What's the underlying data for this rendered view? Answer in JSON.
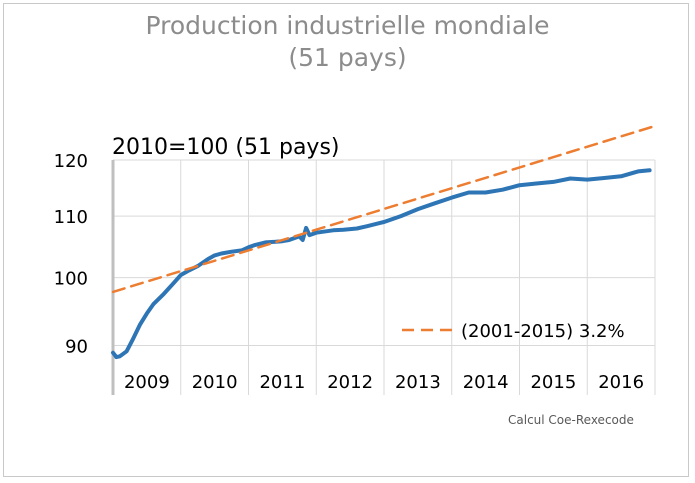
{
  "chart_data": {
    "type": "line",
    "title": "Production industrielle mondiale",
    "subtitle": "(51 pays)",
    "inner_label": "2010=100 (51 pays)",
    "source": "Calcul Coe-Rexecode",
    "x_years": [
      "2009",
      "2010",
      "2011",
      "2012",
      "2013",
      "2014",
      "2015",
      "2016"
    ],
    "xlim": [
      2009.0,
      2017.0
    ],
    "ylim": [
      88,
      120
    ],
    "y_ticks": [
      "90",
      "100",
      "110",
      "120"
    ],
    "y_tick_values": [
      90,
      100,
      110,
      120
    ],
    "grid": true,
    "log_scale": true,
    "legend_position": "bottom-right",
    "series": [
      {
        "color": "#2e75b6",
        "x": [
          2009.0,
          2009.05,
          2009.1,
          2009.2,
          2009.3,
          2009.4,
          2009.5,
          2009.6,
          2009.75,
          2009.9,
          2010.0,
          2010.1,
          2010.25,
          2010.4,
          2010.5,
          2010.6,
          2010.75,
          2010.9,
          2011.0,
          2011.1,
          2011.25,
          2011.4,
          2011.5,
          2011.6,
          2011.75,
          2011.8,
          2011.85,
          2011.9,
          2012.0,
          2012.25,
          2012.4,
          2012.6,
          2012.75,
          2013.0,
          2013.25,
          2013.5,
          2013.75,
          2014.0,
          2014.25,
          2014.5,
          2014.75,
          2015.0,
          2015.25,
          2015.5,
          2015.75,
          2016.0,
          2016.25,
          2016.5,
          2016.75,
          2016.92
        ],
        "values": [
          89.0,
          88.4,
          88.5,
          89.2,
          91.0,
          93.0,
          94.6,
          96.0,
          97.5,
          99.2,
          100.4,
          101.0,
          101.8,
          102.9,
          103.5,
          103.8,
          104.1,
          104.3,
          104.8,
          105.2,
          105.6,
          105.7,
          105.8,
          106.0,
          106.6,
          106.0,
          108.0,
          106.8,
          107.2,
          107.6,
          107.7,
          107.9,
          108.3,
          109.0,
          110.0,
          111.2,
          112.2,
          113.2,
          114.1,
          114.1,
          114.6,
          115.4,
          115.7,
          116.0,
          116.6,
          116.4,
          116.7,
          117.0,
          117.9,
          118.1
        ]
      },
      {
        "name": "(2001-2015) 3.2%",
        "color": "#ed7d31",
        "style": "dashed",
        "x": [
          2009.0,
          2017.0
        ],
        "values": [
          97.8,
          126.5
        ]
      }
    ]
  }
}
